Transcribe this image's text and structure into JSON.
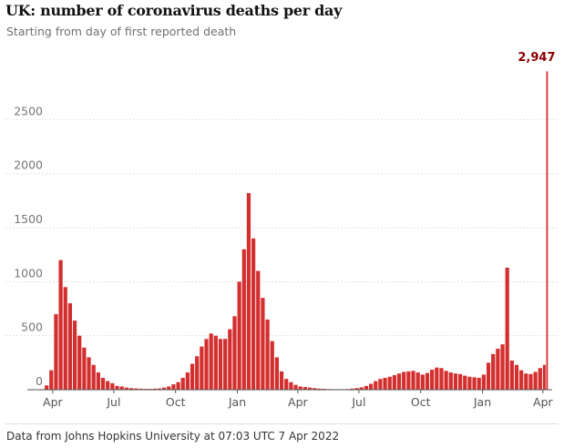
{
  "chart_data": {
    "type": "bar",
    "title": "UK: number of coronavirus deaths per day",
    "subtitle": "Starting from day of first reported death",
    "source": "Data from Johns Hopkins University at 07:03 UTC 7 Apr 2022",
    "ylim": [
      0,
      2950
    ],
    "yticks": [
      "0",
      "500",
      "1000",
      "1500",
      "2000",
      "2500"
    ],
    "xticks": [
      "Apr",
      "Jul",
      "Oct",
      "Jan",
      "Apr",
      "Jul",
      "Oct",
      "Jan",
      "Apr"
    ],
    "grid": true,
    "bar_color": "#d32f2f",
    "annotation": {
      "label": "2,947",
      "value": 2947,
      "color": "#8b0000",
      "position": "last bar"
    },
    "series": [
      {
        "x": [
          "2020-03-06",
          "2020-03-13",
          "2020-03-20",
          "2020-03-27",
          "2020-04-03",
          "2020-04-10",
          "2020-04-17",
          "2020-04-24",
          "2020-05-01",
          "2020-05-08",
          "2020-05-15",
          "2020-05-22",
          "2020-05-29",
          "2020-06-05",
          "2020-06-12",
          "2020-06-19",
          "2020-06-26",
          "2020-07-03",
          "2020-07-10",
          "2020-07-17",
          "2020-07-24",
          "2020-07-31",
          "2020-08-07",
          "2020-08-14",
          "2020-08-21",
          "2020-08-28",
          "2020-09-04",
          "2020-09-11",
          "2020-09-18",
          "2020-09-25",
          "2020-10-02",
          "2020-10-09",
          "2020-10-16",
          "2020-10-23",
          "2020-10-30",
          "2020-11-06",
          "2020-11-13",
          "2020-11-20",
          "2020-11-27",
          "2020-12-04",
          "2020-12-11",
          "2020-12-18",
          "2020-12-25",
          "2021-01-01",
          "2021-01-08",
          "2021-01-15",
          "2021-01-22",
          "2021-01-29",
          "2021-02-05",
          "2021-02-12",
          "2021-02-19",
          "2021-02-26",
          "2021-03-05",
          "2021-03-12",
          "2021-03-19",
          "2021-03-26",
          "2021-04-02",
          "2021-04-09",
          "2021-04-16",
          "2021-04-23",
          "2021-04-30",
          "2021-05-07",
          "2021-05-14",
          "2021-05-21",
          "2021-05-28",
          "2021-06-04",
          "2021-06-11",
          "2021-06-18",
          "2021-06-25",
          "2021-07-02",
          "2021-07-09",
          "2021-07-16",
          "2021-07-23",
          "2021-07-30",
          "2021-08-06",
          "2021-08-13",
          "2021-08-20",
          "2021-08-27",
          "2021-09-03",
          "2021-09-10",
          "2021-09-17",
          "2021-09-24",
          "2021-10-01",
          "2021-10-08",
          "2021-10-15",
          "2021-10-22",
          "2021-10-29",
          "2021-11-05",
          "2021-11-12",
          "2021-11-19",
          "2021-11-26",
          "2021-12-03",
          "2021-12-10",
          "2021-12-17",
          "2021-12-24",
          "2021-12-31",
          "2022-01-07",
          "2022-01-14",
          "2022-01-21",
          "2022-01-28",
          "2022-02-04",
          "2022-02-11",
          "2022-02-18",
          "2022-02-25",
          "2022-03-04",
          "2022-03-11",
          "2022-03-18",
          "2022-03-25",
          "2022-04-01",
          "2022-04-06"
        ],
        "values": [
          0,
          5,
          40,
          180,
          700,
          1200,
          950,
          800,
          640,
          500,
          390,
          300,
          230,
          160,
          110,
          80,
          60,
          35,
          30,
          20,
          15,
          12,
          10,
          8,
          8,
          10,
          12,
          20,
          30,
          50,
          70,
          110,
          160,
          240,
          310,
          400,
          470,
          520,
          500,
          470,
          470,
          560,
          680,
          1000,
          1300,
          1820,
          1400,
          1100,
          850,
          650,
          450,
          300,
          170,
          100,
          70,
          45,
          30,
          25,
          20,
          15,
          10,
          8,
          6,
          5,
          5,
          5,
          6,
          10,
          15,
          22,
          35,
          55,
          80,
          100,
          110,
          120,
          135,
          150,
          165,
          170,
          175,
          160,
          140,
          155,
          185,
          205,
          200,
          175,
          160,
          150,
          145,
          130,
          120,
          115,
          110,
          140,
          250,
          330,
          380,
          420,
          1130,
          270,
          230,
          180,
          150,
          145,
          165,
          200,
          230,
          2947
        ]
      }
    ]
  }
}
